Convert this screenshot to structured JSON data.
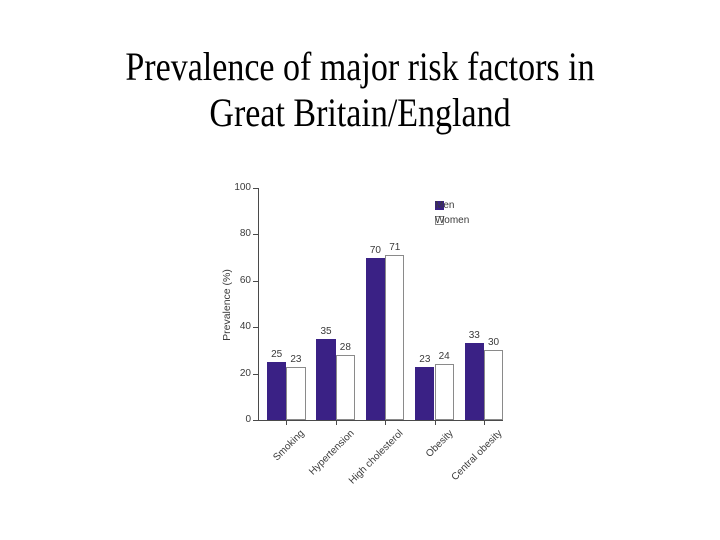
{
  "slide": {
    "title_lines": [
      "Prevalence of major risk factors in",
      "Great Britain/England"
    ]
  },
  "chart_data": {
    "type": "bar",
    "title": "",
    "categories": [
      "Smoking",
      "Hypertension",
      "High cholesterol",
      "Obesity",
      "Central obesity"
    ],
    "series": [
      {
        "name": "Men",
        "values": [
          25,
          35,
          70,
          23,
          33
        ]
      },
      {
        "name": "Women",
        "values": [
          23,
          28,
          71,
          24,
          30
        ]
      }
    ],
    "bar_value_labels": {
      "Men": [
        25,
        35,
        70,
        23,
        33
      ],
      "Women": [
        23,
        28,
        71,
        24,
        30
      ]
    },
    "xlabel": "",
    "ylabel": "Prevalence (%)",
    "yticks": [
      0,
      20,
      40,
      60,
      80,
      100
    ],
    "ylim": [
      0,
      100
    ],
    "grid": false,
    "legend_position": "top-right",
    "legend_entries": [
      "Men",
      "Women"
    ]
  },
  "colors": {
    "men_bar": "#3a2185",
    "women_bar_fill": "#ffffff",
    "women_bar_border": "#8a8a8a",
    "axis": "#4a4a4a",
    "chart_text": "#3a3a3a",
    "title_text": "#000000",
    "background": "#ffffff"
  }
}
